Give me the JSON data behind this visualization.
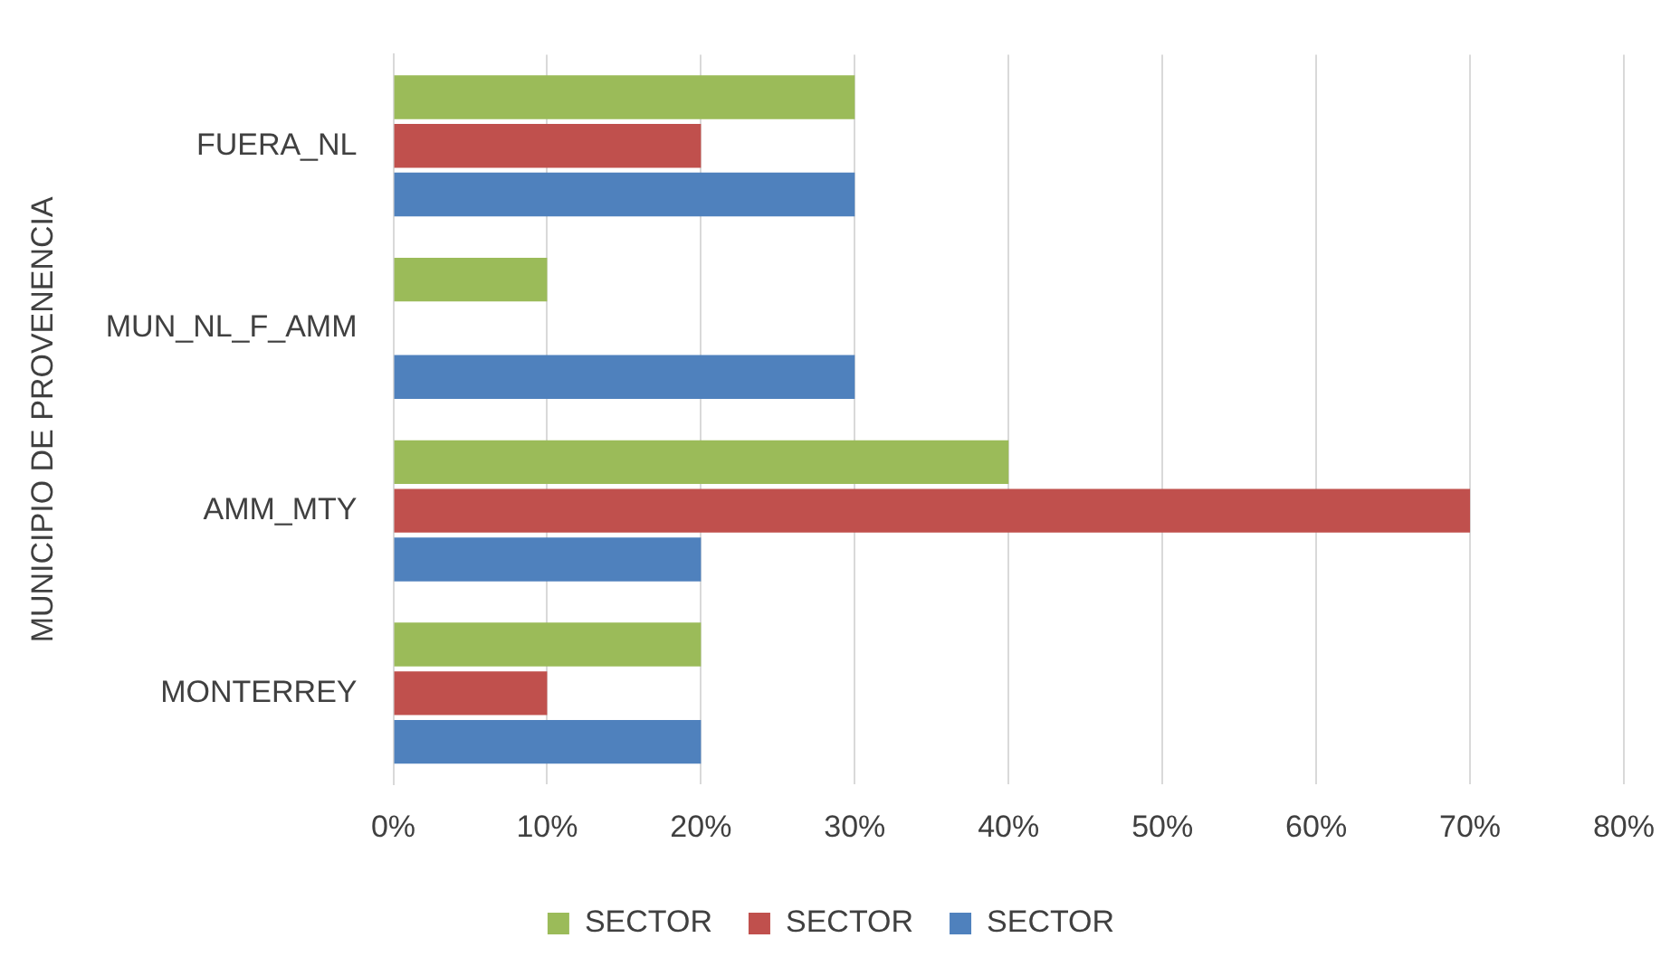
{
  "chart_data": {
    "type": "bar",
    "orientation": "horizontal",
    "ylabel": "MUNICIPIO DE PROVENENCIA",
    "categories": [
      "FUERA_NL",
      "MUN_NL_F_AMM",
      "AMM_MTY",
      "MONTERREY"
    ],
    "series": [
      {
        "name": "SECTOR",
        "color": "#9bbb59",
        "values": [
          30,
          10,
          40,
          20
        ]
      },
      {
        "name": "SECTOR",
        "color": "#c0504d",
        "values": [
          20,
          null,
          70,
          10
        ]
      },
      {
        "name": "SECTOR",
        "color": "#4f81bd",
        "values": [
          30,
          30,
          20,
          20
        ]
      }
    ],
    "xlim": [
      0,
      80
    ],
    "xticks": [
      {
        "value": 0,
        "label": "0%"
      },
      {
        "value": 10,
        "label": "10%"
      },
      {
        "value": 20,
        "label": "20%"
      },
      {
        "value": 30,
        "label": "30%"
      },
      {
        "value": 40,
        "label": "40%"
      },
      {
        "value": 50,
        "label": "50%"
      },
      {
        "value": 60,
        "label": "60%"
      },
      {
        "value": 70,
        "label": "70%"
      },
      {
        "value": 80,
        "label": "80%"
      }
    ],
    "grid": "x",
    "legend": "bottom"
  }
}
